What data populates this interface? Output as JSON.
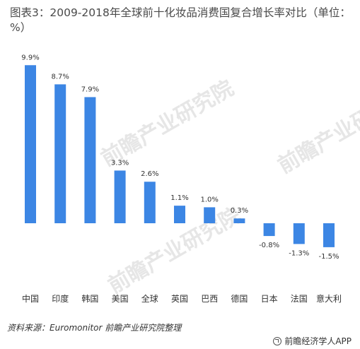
{
  "title": "图表3：2009-2018年全球前十化妆品消费国复合增长率对比（单位：%）",
  "source": "资料来源：Euromonitor 前瞻产业研究院整理",
  "brand": "前瞻经济学人APP",
  "watermark": "前瞻产业研究院",
  "colors": {
    "bar": "#3c86e4"
  },
  "chart_data": {
    "type": "bar",
    "title": "图表3：2009-2018年全球前十化妆品消费国复合增长率对比（单位：%）",
    "categories": [
      "中国",
      "印度",
      "韩国",
      "美国",
      "全球",
      "英国",
      "巴西",
      "德国",
      "日本",
      "法国",
      "意大利"
    ],
    "values": [
      9.9,
      8.7,
      7.9,
      3.3,
      2.6,
      1.1,
      1.0,
      0.3,
      -0.8,
      -1.3,
      -1.5
    ],
    "labels": [
      "9.9%",
      "8.7%",
      "7.9%",
      "3.3%",
      "2.6%",
      "1.1%",
      "1.0%",
      "0.3%",
      "-0.8%",
      "-1.3%",
      "-1.5%"
    ],
    "xlabel": "",
    "ylabel": "",
    "grid": false,
    "legend": "none"
  }
}
